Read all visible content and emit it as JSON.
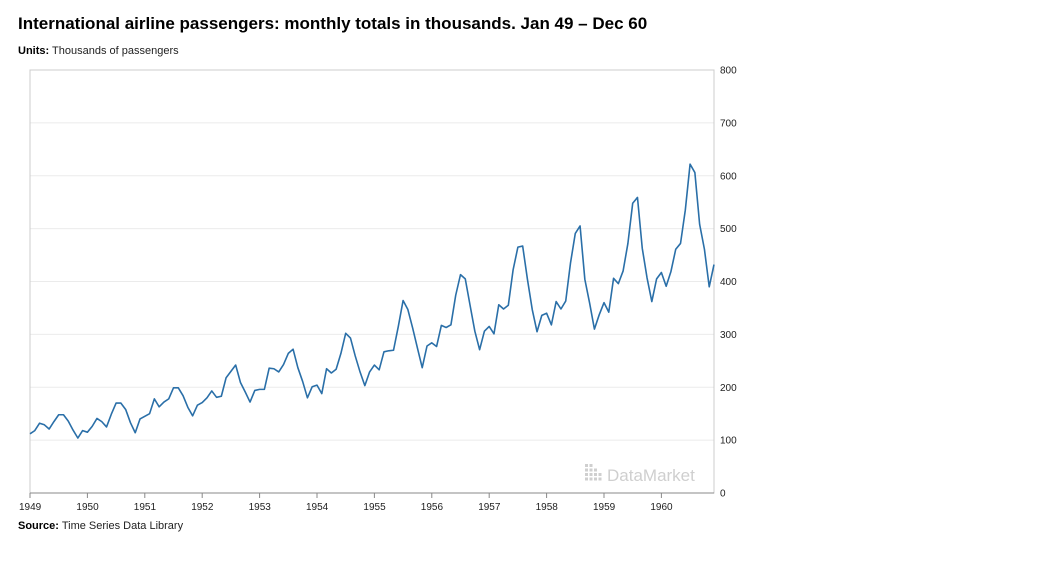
{
  "header": {
    "title": "International airline passengers: monthly totals in thousands. Jan 49 – Dec 60",
    "units_label": "Units:",
    "units_value": "Thousands of passengers"
  },
  "footer": {
    "source_label": "Source:",
    "source_value": "Time Series Data Library"
  },
  "watermark": {
    "text": "DataMarket",
    "icon": "datamarket-dots-icon",
    "color": "#cfcfcf"
  },
  "colors": {
    "line": "#2a6fa8",
    "grid": "#ebebeb",
    "frame": "#cccccc",
    "axis": "#888888"
  },
  "chart_data": {
    "type": "line",
    "title": "International airline passengers: monthly totals in thousands. Jan 49 – Dec 60",
    "ylabel": "Thousands of passengers",
    "xlabel": "",
    "x_start": "1949-01",
    "x_end": "1960-12",
    "xlim": [
      "1949-01",
      "1960-12"
    ],
    "ylim": [
      0,
      800
    ],
    "y_ticks": [
      0,
      100,
      200,
      300,
      400,
      500,
      600,
      700,
      800
    ],
    "y_axis_position": "right",
    "x_ticks": [
      "1949",
      "1950",
      "1951",
      "1952",
      "1953",
      "1954",
      "1955",
      "1956",
      "1957",
      "1958",
      "1959",
      "1960"
    ],
    "grid": true,
    "legend": "none",
    "series": [
      {
        "values": [
          112,
          118,
          132,
          129,
          121,
          135,
          148,
          148,
          136,
          119,
          104,
          118,
          115,
          126,
          141,
          135,
          125,
          149,
          170,
          170,
          158,
          133,
          114,
          140,
          145,
          150,
          178,
          163,
          172,
          178,
          199,
          199,
          184,
          162,
          146,
          166,
          171,
          180,
          193,
          181,
          183,
          218,
          230,
          242,
          209,
          191,
          172,
          194,
          196,
          196,
          236,
          235,
          229,
          243,
          264,
          272,
          237,
          211,
          180,
          201,
          204,
          188,
          235,
          227,
          234,
          264,
          302,
          293,
          259,
          229,
          203,
          229,
          242,
          233,
          267,
          269,
          270,
          315,
          364,
          347,
          312,
          274,
          237,
          278,
          284,
          277,
          317,
          313,
          318,
          374,
          413,
          405,
          355,
          306,
          271,
          306,
          315,
          301,
          356,
          348,
          355,
          422,
          465,
          467,
          404,
          347,
          305,
          336,
          340,
          318,
          362,
          348,
          363,
          435,
          491,
          505,
          404,
          359,
          310,
          337,
          360,
          342,
          406,
          396,
          420,
          472,
          548,
          559,
          463,
          407,
          362,
          405,
          417,
          391,
          419,
          461,
          472,
          535,
          622,
          606,
          508,
          461,
          390,
          432
        ]
      }
    ]
  }
}
